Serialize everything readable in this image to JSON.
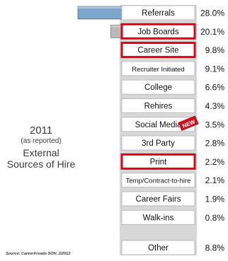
{
  "side_title": {
    "year": "2011",
    "subtitle": "(as reported)",
    "title_line1": "External",
    "title_line2": "Sources of Hire"
  },
  "source_note": "Source: CareerXroads SOH, 2/2012",
  "new_badge": "NEW",
  "colors": {
    "highlight_border": "#e0001a",
    "row_background": "#d7d7d7",
    "row_divider": "#b0b0b0",
    "new_badge": "#c8101f"
  },
  "chart_data": {
    "type": "bar",
    "orientation": "horizontal",
    "title": "",
    "xlabel": "",
    "ylabel": "",
    "value_suffix": "%",
    "categories": [
      "Referrals",
      "Job Boards",
      "Career Site",
      "Recruiter Initiated",
      "College",
      "Rehires",
      "Social Media",
      "3rd Party",
      "Print",
      "Temp/Contract-to-hire",
      "Career Fairs",
      "Walk-ins",
      "Other"
    ],
    "value_labels": [
      "28.0%",
      "20.1%",
      "9.8%",
      "9.1%",
      "6.6%",
      "4.3%",
      "3.5%",
      "2.8%",
      "2.2%",
      "2.1%",
      "1.9%",
      "0.8%",
      "8.8%"
    ],
    "values": [
      28.0,
      20.1,
      9.8,
      9.1,
      6.6,
      4.3,
      3.5,
      2.8,
      2.2,
      2.1,
      1.9,
      0.8,
      8.8
    ],
    "highlighted": [
      "Job Boards",
      "Career Site",
      "Print"
    ],
    "bar_colors": [
      "#7ea6cc",
      "#b9b9b9",
      "#a9a9a9",
      "#5e5e5e",
      "#9a9a9a",
      "#8a8a8a",
      "#c8101f",
      "#2e2e2e",
      "#3a3a3a",
      "#262626",
      "#1e1e1e",
      "#111111",
      "#2a2a2a"
    ]
  }
}
